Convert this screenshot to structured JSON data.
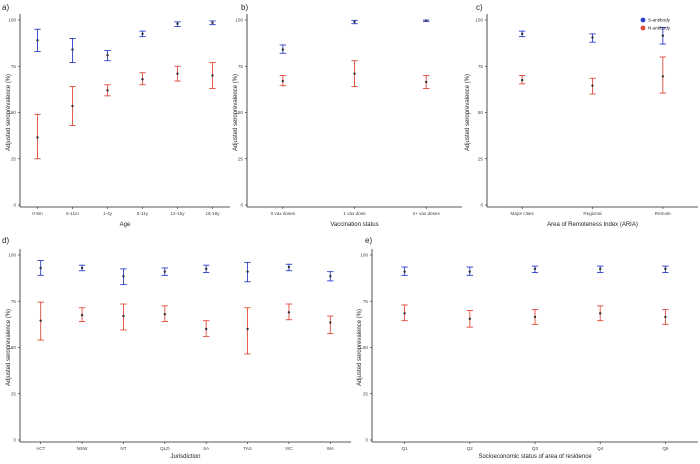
{
  "colors": {
    "s": "#2b3fcc",
    "n": "#e04a3a",
    "point": "#333333",
    "axis": "#222222"
  },
  "legend": {
    "items": [
      {
        "label": "S-antibody",
        "color": "#2b3fcc"
      },
      {
        "label": "N-antibody",
        "color": "#e04a3a"
      }
    ],
    "placement": "top-right of panel c"
  },
  "chart_data": [
    {
      "panel": "a)",
      "type": "scatter",
      "error_bars": true,
      "xlabel": "Age",
      "ylabel": "Adjusted seroprevalence (%)",
      "ylim": [
        0,
        100
      ],
      "yticks": [
        "0",
        "25",
        "50",
        "75",
        "100"
      ],
      "categories": [
        "0-5m",
        "6-11m",
        "1-4y",
        "5-11y",
        "12-15y",
        "16-19y"
      ],
      "series": [
        {
          "name": "S-antibody",
          "values": [
            89,
            84,
            81,
            92.5,
            98,
            98.5
          ],
          "lower": [
            83,
            77,
            78,
            91,
            96.5,
            97.5
          ],
          "upper": [
            95,
            90,
            83.5,
            94,
            99,
            99.5
          ]
        },
        {
          "name": "N-antibody",
          "values": [
            36.5,
            53.5,
            62,
            68,
            71,
            70
          ],
          "lower": [
            25,
            43,
            59,
            65,
            67,
            63
          ],
          "upper": [
            49,
            64,
            65,
            71.5,
            75,
            77
          ]
        }
      ]
    },
    {
      "panel": "b)",
      "type": "scatter",
      "error_bars": true,
      "xlabel": "Vaccination status",
      "ylabel": "Adjusted seroprevalence (%)",
      "ylim": [
        0,
        100
      ],
      "yticks": [
        "0",
        "25",
        "50",
        "75",
        "100"
      ],
      "categories": [
        "0 vax doses",
        "1 vax dose",
        "2+ vax doses"
      ],
      "series": [
        {
          "name": "S-antibody",
          "values": [
            84,
            99,
            99.7
          ],
          "lower": [
            82,
            98,
            99.2
          ],
          "upper": [
            86.5,
            99.8,
            100
          ]
        },
        {
          "name": "N-antibody",
          "values": [
            67,
            71,
            66.5
          ],
          "lower": [
            64.5,
            64,
            63
          ],
          "upper": [
            70,
            78,
            70
          ]
        }
      ]
    },
    {
      "panel": "c)",
      "type": "scatter",
      "error_bars": true,
      "xlabel": "Area of Remoteness Index (ARIA)",
      "ylabel": "Adjusted seroprevalence (%)",
      "ylim": [
        0,
        100
      ],
      "yticks": [
        "0",
        "25",
        "50",
        "75",
        "100"
      ],
      "categories": [
        "Major cities",
        "Regional",
        "Remote"
      ],
      "series": [
        {
          "name": "S-antibody",
          "values": [
            92.5,
            90.5,
            91.5
          ],
          "lower": [
            91,
            88,
            87
          ],
          "upper": [
            94,
            92.5,
            96
          ]
        },
        {
          "name": "N-antibody",
          "values": [
            67.5,
            64.5,
            69.5
          ],
          "lower": [
            65.5,
            60,
            60.5
          ],
          "upper": [
            70,
            68.5,
            80
          ]
        }
      ]
    },
    {
      "panel": "d)",
      "type": "scatter",
      "error_bars": true,
      "xlabel": "Jurisdiction",
      "ylabel": "Adjusted seroprevalence (%)",
      "ylim": [
        0,
        100
      ],
      "yticks": [
        "0",
        "25",
        "50",
        "75",
        "100"
      ],
      "categories": [
        "ACT",
        "NSW",
        "NT",
        "QLD",
        "SA",
        "TAS",
        "VIC",
        "WA"
      ],
      "series": [
        {
          "name": "S-antibody",
          "values": [
            93,
            93,
            88.5,
            91,
            92.5,
            91,
            93.5,
            88.5
          ],
          "lower": [
            89,
            91.5,
            84,
            89,
            90.5,
            85.5,
            91.5,
            86
          ],
          "upper": [
            97,
            94.5,
            92.5,
            93,
            94.5,
            96,
            95,
            91
          ]
        },
        {
          "name": "N-antibody",
          "values": [
            64.5,
            67.5,
            67,
            68,
            60,
            60,
            69,
            63.5
          ],
          "lower": [
            54,
            64,
            59.5,
            64,
            56,
            46.5,
            65,
            57.5
          ],
          "upper": [
            74.5,
            71.5,
            73.5,
            72.5,
            64.5,
            71.5,
            73.5,
            67
          ]
        }
      ]
    },
    {
      "panel": "e)",
      "type": "scatter",
      "error_bars": true,
      "xlabel": "Socioeconomic status of area of residence",
      "ylabel": "Adjusted seroprevalence (%)",
      "ylim": [
        0,
        100
      ],
      "yticks": [
        "0",
        "25",
        "50",
        "75",
        "100"
      ],
      "categories": [
        "Q1",
        "Q2",
        "Q3",
        "Q4",
        "Q5"
      ],
      "series": [
        {
          "name": "S-antibody",
          "values": [
            91,
            91,
            92.5,
            92.5,
            92.5
          ],
          "lower": [
            89,
            89,
            90.5,
            90.5,
            90.5
          ],
          "upper": [
            93.5,
            93.5,
            94,
            94,
            94
          ]
        },
        {
          "name": "N-antibody",
          "values": [
            68.5,
            65.5,
            66.5,
            68.5,
            66.5
          ],
          "lower": [
            64.5,
            61,
            62.5,
            64.5,
            62.5
          ],
          "upper": [
            73,
            70,
            70.5,
            72.5,
            70.5
          ]
        }
      ]
    }
  ]
}
